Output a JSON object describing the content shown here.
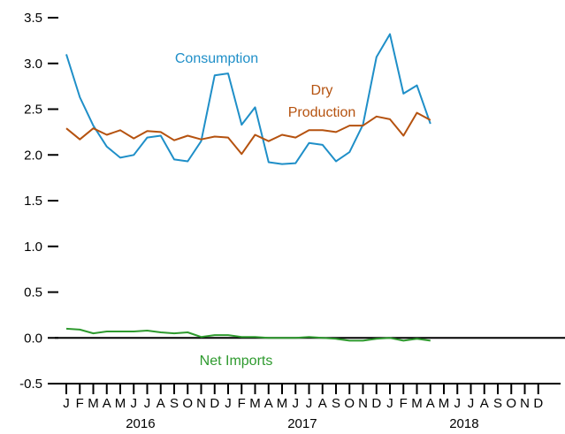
{
  "chart_data": {
    "type": "line",
    "title": "",
    "xlabel": "",
    "ylabel": "",
    "ylim": [
      -0.5,
      3.5
    ],
    "y_ticks": [
      "3.5",
      "3.0",
      "2.5",
      "2.0",
      "1.5",
      "1.0",
      "0.5",
      "0.0",
      "-0.5"
    ],
    "x_start": "2016-01",
    "x_end": "2018-12",
    "month_letters": [
      "J",
      "F",
      "M",
      "A",
      "M",
      "J",
      "J",
      "A",
      "S",
      "O",
      "N",
      "D",
      "J",
      "F",
      "M",
      "A",
      "M",
      "J",
      "J",
      "A",
      "S",
      "O",
      "N",
      "D",
      "J",
      "F",
      "M",
      "A",
      "M",
      "J",
      "J",
      "A",
      "S",
      "O",
      "N",
      "D"
    ],
    "year_labels": [
      "2016",
      "2017",
      "2018"
    ],
    "zero_line": true,
    "grid": false,
    "colors": {
      "consumption": "#1f8fc8",
      "dry_production": "#b5520f",
      "net_imports": "#2e9a2e"
    },
    "series": [
      {
        "key": "consumption",
        "name": "Consumption",
        "label_lines": [
          "Consumption"
        ],
        "values": [
          3.1,
          2.63,
          2.32,
          2.09,
          1.97,
          2.0,
          2.19,
          2.21,
          1.95,
          1.93,
          2.15,
          2.87,
          2.89,
          2.33,
          2.52,
          1.92,
          1.9,
          1.91,
          2.13,
          2.11,
          1.93,
          2.03,
          2.33,
          3.07,
          3.32,
          2.67,
          2.76,
          2.34
        ]
      },
      {
        "key": "dry_production",
        "name": "Dry Production",
        "label_lines": [
          "Dry",
          "Production"
        ],
        "values": [
          2.29,
          2.17,
          2.29,
          2.22,
          2.27,
          2.18,
          2.26,
          2.25,
          2.16,
          2.21,
          2.17,
          2.2,
          2.19,
          2.01,
          2.22,
          2.15,
          2.22,
          2.19,
          2.27,
          2.27,
          2.25,
          2.32,
          2.32,
          2.42,
          2.39,
          2.21,
          2.46,
          2.38
        ]
      },
      {
        "key": "net_imports",
        "name": "Net Imports",
        "label_lines": [
          "Net Imports"
        ],
        "values": [
          0.1,
          0.09,
          0.05,
          0.07,
          0.07,
          0.07,
          0.08,
          0.06,
          0.05,
          0.06,
          0.01,
          0.03,
          0.03,
          0.01,
          0.01,
          0.0,
          0.0,
          0.0,
          0.01,
          0.0,
          -0.01,
          -0.03,
          -0.03,
          -0.01,
          0.0,
          -0.03,
          -0.01,
          -0.03
        ]
      }
    ]
  }
}
